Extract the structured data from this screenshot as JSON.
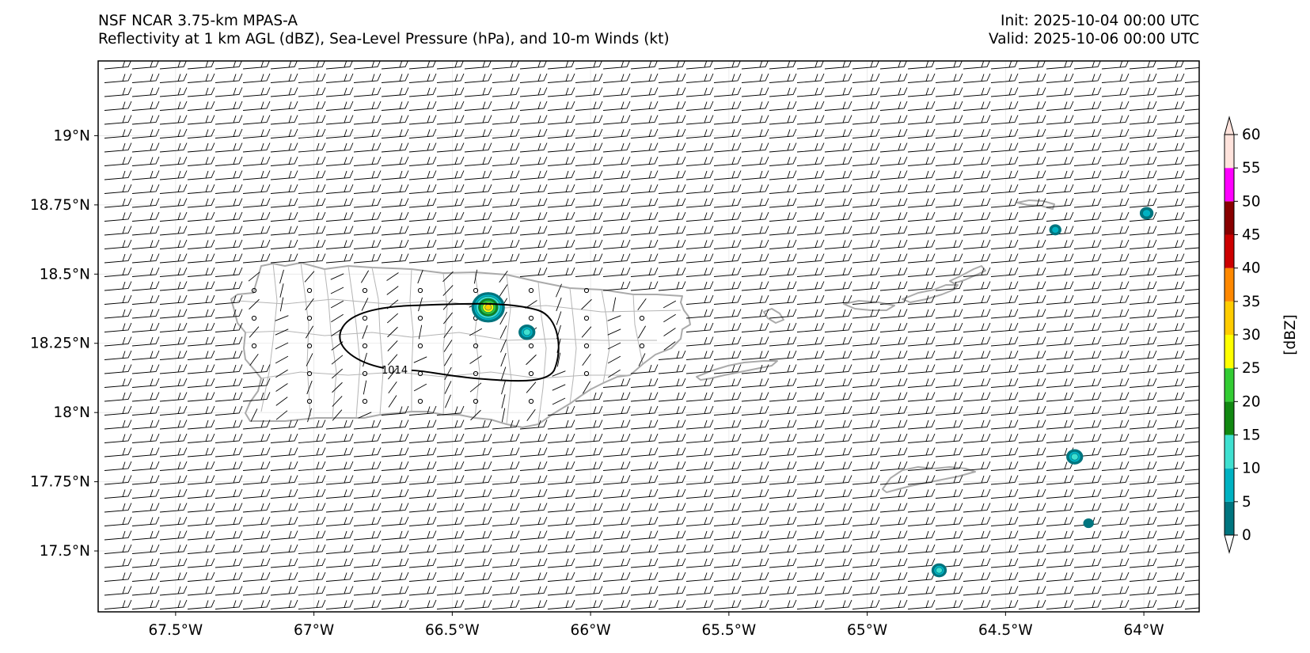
{
  "title": {
    "model": "NSF NCAR 3.75-km MPAS-A",
    "fields": "Reflectivity at 1 km AGL (dBZ), Sea-Level Pressure (hPa), and 10-m Winds (kt)",
    "init": "Init: 2025-10-04 00:00 UTC",
    "valid": "Valid: 2025-10-06 00:00 UTC"
  },
  "map": {
    "lon_range": [
      -67.78,
      -63.8
    ],
    "lat_range": [
      17.28,
      19.27
    ],
    "lat_ticks": [
      {
        "value": 19.0,
        "label": "19°N"
      },
      {
        "value": 18.75,
        "label": "18.75°N"
      },
      {
        "value": 18.5,
        "label": "18.5°N"
      },
      {
        "value": 18.25,
        "label": "18.25°N"
      },
      {
        "value": 18.0,
        "label": "18°N"
      },
      {
        "value": 17.75,
        "label": "17.75°N"
      },
      {
        "value": 17.5,
        "label": "17.5°N"
      }
    ],
    "lon_ticks": [
      {
        "value": -67.5,
        "label": "67.5°W"
      },
      {
        "value": -67.0,
        "label": "67°W"
      },
      {
        "value": -66.5,
        "label": "66.5°W"
      },
      {
        "value": -66.0,
        "label": "66°W"
      },
      {
        "value": -65.5,
        "label": "65.5°W"
      },
      {
        "value": -65.0,
        "label": "65°W"
      },
      {
        "value": -64.5,
        "label": "64.5°W"
      },
      {
        "value": -64.0,
        "label": "64°W"
      }
    ],
    "slp_contours": [
      {
        "value": 1014,
        "label": "1014"
      }
    ],
    "wind": {
      "ambient_speed_kt": 15,
      "ambient_from": "east-northeast",
      "island_calm": true
    },
    "reflectivity_cells": [
      {
        "lon": -66.37,
        "lat": 18.38,
        "max_dbz": 33
      },
      {
        "lon": -66.23,
        "lat": 18.29,
        "max_dbz": 12
      },
      {
        "lon": -64.25,
        "lat": 17.84,
        "max_dbz": 12
      },
      {
        "lon": -63.99,
        "lat": 18.72,
        "max_dbz": 8
      },
      {
        "lon": -64.74,
        "lat": 17.43,
        "max_dbz": 10
      },
      {
        "lon": -64.32,
        "lat": 18.66,
        "max_dbz": 6
      },
      {
        "lon": -64.2,
        "lat": 17.6,
        "max_dbz": 4
      }
    ]
  },
  "colorbar": {
    "label": "[dBZ]",
    "levels": [
      0,
      5,
      10,
      15,
      20,
      25,
      30,
      35,
      40,
      45,
      50,
      55,
      60
    ],
    "colors": [
      "#00757f",
      "#00b2c2",
      "#3fe0d0",
      "#118811",
      "#33cc33",
      "#ffff00",
      "#ffcc00",
      "#ff8800",
      "#cc0000",
      "#880000",
      "#ff00ff",
      "#ffe3dc"
    ],
    "tick_labels": [
      "0",
      "5",
      "10",
      "15",
      "20",
      "25",
      "30",
      "35",
      "40",
      "45",
      "50",
      "55",
      "60"
    ]
  }
}
